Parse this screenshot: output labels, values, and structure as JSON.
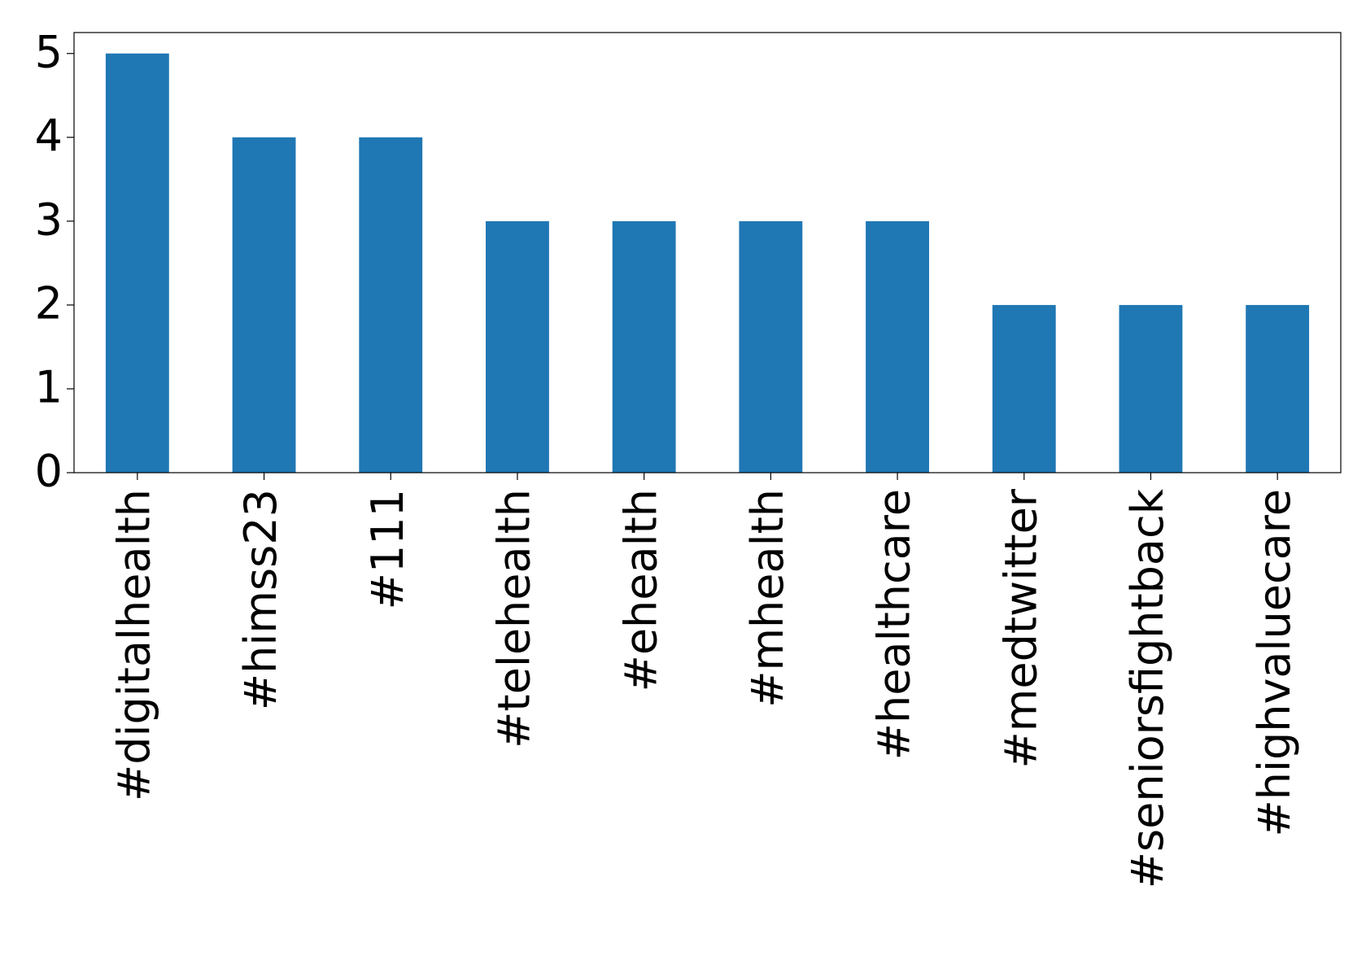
{
  "chart_data": {
    "type": "bar",
    "categories": [
      "#digitalhealth",
      "#himss23",
      "#111",
      "#telehealth",
      "#ehealth",
      "#mhealth",
      "#healthcare",
      "#medtwitter",
      "#seniorsfightback",
      "#highvaluecare"
    ],
    "values": [
      5,
      4,
      4,
      3,
      3,
      3,
      3,
      2,
      2,
      2
    ],
    "color": "#1f77b4",
    "ylim": [
      0,
      5.25
    ],
    "yticks": [
      0,
      1,
      2,
      3,
      4,
      5
    ],
    "grid": false
  }
}
